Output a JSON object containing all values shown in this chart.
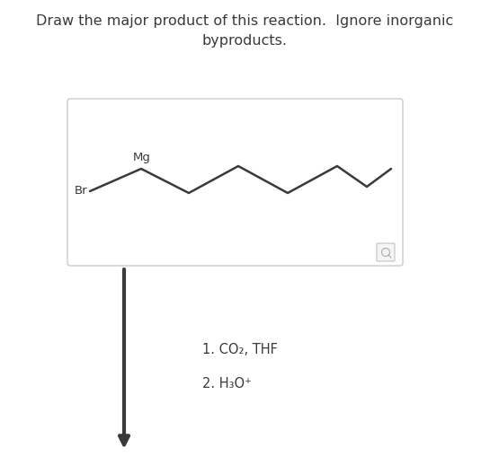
{
  "title_line1": "Draw the major product of this reaction.  Ignore inorganic",
  "title_line2": "byproducts.",
  "title_fontsize": 11.5,
  "bg_color": "#ffffff",
  "text_color": "#3a3a3a",
  "box_color": "#ffffff",
  "box_border_color": "#cccccc",
  "molecule_color": "#3a3a3a",
  "label_Br": "Br",
  "label_Mg": "Mg",
  "reaction_step1": "1. CO₂, THF",
  "reaction_step2": "2. H₃O⁺",
  "reaction_fontsize": 10.5,
  "arrow_color": "#3a3a3a"
}
